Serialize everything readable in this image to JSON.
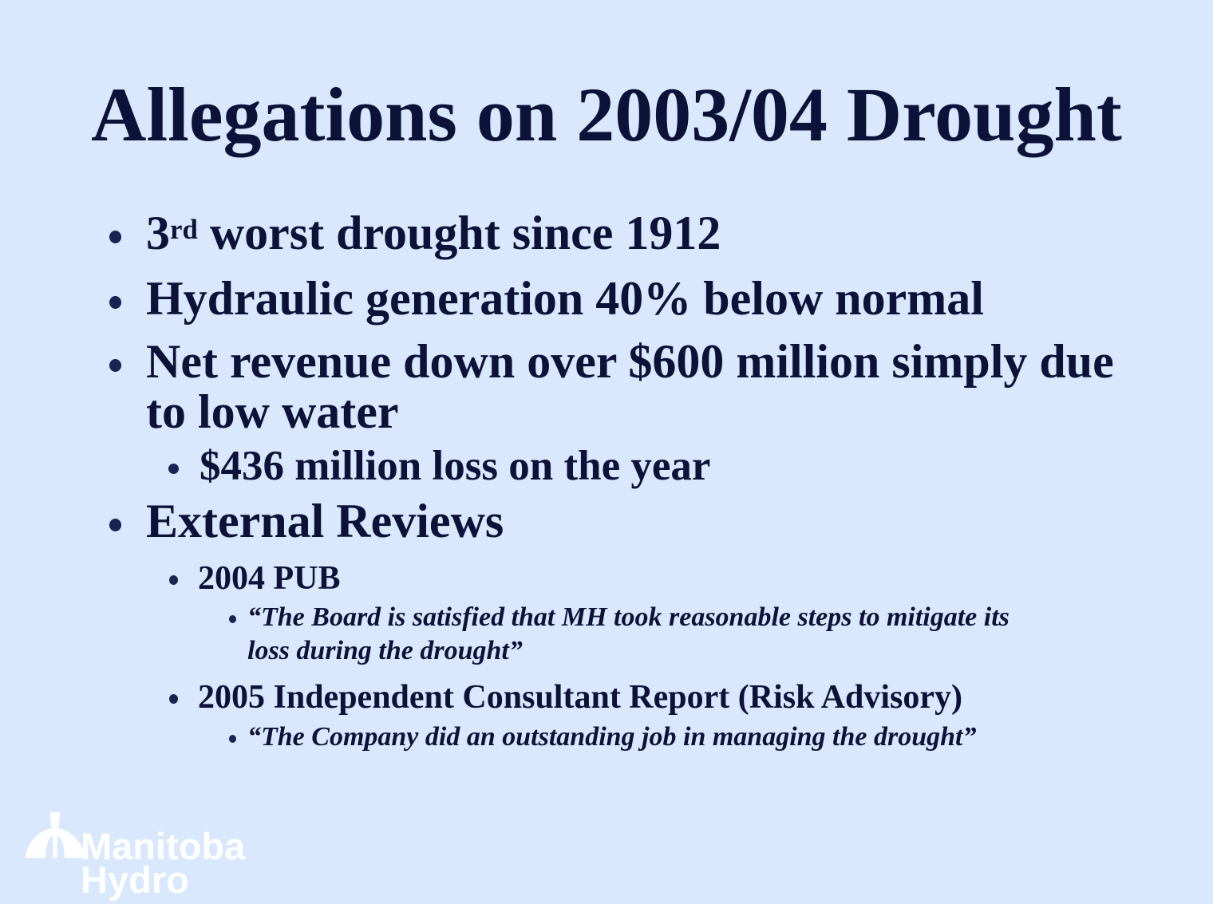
{
  "slide": {
    "title": "Allegations on 2003/04 Drought"
  },
  "bullets": [
    {
      "level": 1,
      "runs": [
        {
          "t": "3"
        },
        {
          "t": "rd",
          "sup": true
        },
        {
          "t": " worst drought since 1912"
        }
      ]
    },
    {
      "level": 1,
      "runs": [
        {
          "t": "Hydraulic generation 40% below normal"
        }
      ]
    },
    {
      "level": 1,
      "runs": [
        {
          "t": "Net revenue down over $600 million simply due"
        },
        {
          "br": true
        },
        {
          "t": "to low water"
        }
      ]
    },
    {
      "level": 2,
      "runs": [
        {
          "t": "$436 million loss on the year"
        }
      ]
    },
    {
      "level": 1,
      "runs": [
        {
          "t": "External Reviews"
        }
      ]
    },
    {
      "level": 3,
      "runs": [
        {
          "t": "2004 PUB"
        }
      ]
    },
    {
      "level": 4,
      "runs": [
        {
          "t": "“The Board is satisfied that MH took reasonable steps to mitigate its"
        },
        {
          "br": true
        },
        {
          "t": "loss during the drought”"
        }
      ]
    },
    {
      "level": 3,
      "runs": [
        {
          "t": "2005 Independent Consultant Report (Risk Advisory)"
        }
      ]
    },
    {
      "level": 4,
      "runs": [
        {
          "t": "“The Company did an outstanding job in managing the drought”"
        }
      ]
    }
  ],
  "logo": {
    "line1": "Manitoba",
    "line2": "Hydro",
    "icon": "manitoba-hydro-logo"
  },
  "colors": {
    "background": "#d9e8fc",
    "text": "#0d1238",
    "bullet_dot": "#182553",
    "logo": "#ffffff"
  }
}
